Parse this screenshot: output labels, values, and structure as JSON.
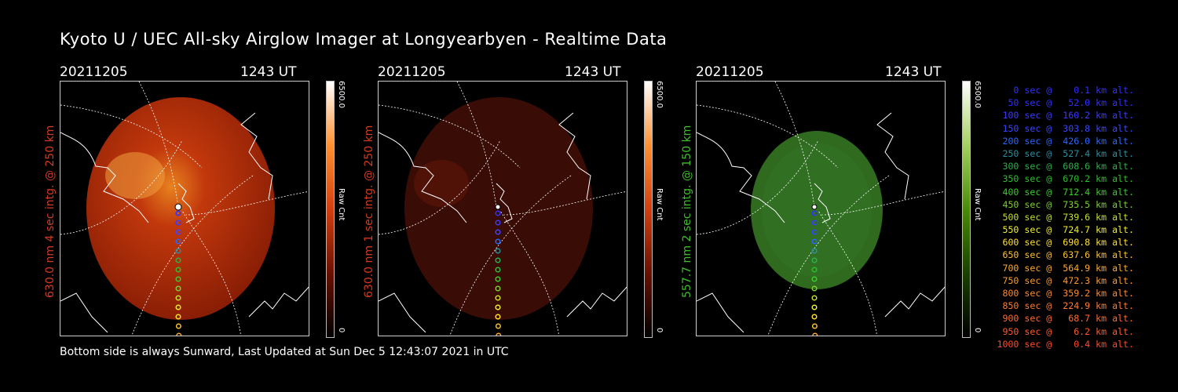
{
  "title": "Kyoto U / UEC All-sky Airglow Imager at Longyearbyen - Realtime Data",
  "footer": "Bottom side is always Sunward, Last Updated at Sun Dec  5 12:43:07 2021 in UTC",
  "panels": [
    {
      "date": "20211205",
      "time": "1243 UT",
      "side_label": "630.0 nm 4 sec intg. @ 250 km",
      "cb_max": "6500.0",
      "cb_min": "0",
      "cb_unit": "Raw Cnt",
      "color": "#d33a1b",
      "cb_color": "#ff6a1a"
    },
    {
      "date": "20211205",
      "time": "1243 UT",
      "side_label": "630.0 nm 1 sec intg. @ 250 km",
      "cb_max": "6500.0",
      "cb_min": "0",
      "cb_unit": "Raw Cnt",
      "color": "#d33a1b",
      "cb_color": "#ff6a1a"
    },
    {
      "date": "20211205",
      "time": "1243 UT",
      "side_label": "557.7 nm 2 sec intg. @ 150 km",
      "cb_max": "6500.0",
      "cb_min": "0",
      "cb_unit": "Raw Cnt",
      "color": "#3fbf2a",
      "cb_color": "#6fbf1a"
    }
  ],
  "chart_data": {
    "type": "scatter",
    "title": "Kyoto U / UEC All-sky Airglow Imager at Longyearbyen - Realtime Data",
    "series_legend": [
      {
        "sec": "0",
        "alt": "0.1",
        "text": "   0 sec @    0.1 km alt.",
        "color": "#3030ff"
      },
      {
        "sec": "50",
        "alt": "52.0",
        "text": "  50 sec @   52.0 km alt.",
        "color": "#3030ff"
      },
      {
        "sec": "100",
        "alt": "160.2",
        "text": " 100 sec @  160.2 km alt.",
        "color": "#3a3aff"
      },
      {
        "sec": "150",
        "alt": "303.8",
        "text": " 150 sec @  303.8 km alt.",
        "color": "#3a44ff"
      },
      {
        "sec": "200",
        "alt": "426.0",
        "text": " 200 sec @  426.0 km alt.",
        "color": "#2a66ff"
      },
      {
        "sec": "250",
        "alt": "527.4",
        "text": " 250 sec @  527.4 km alt.",
        "color": "#2a8f9f"
      },
      {
        "sec": "300",
        "alt": "608.6",
        "text": " 300 sec @  608.6 km alt.",
        "color": "#2ab04a"
      },
      {
        "sec": "350",
        "alt": "670.2",
        "text": " 350 sec @  670.2 km alt.",
        "color": "#2ac02a"
      },
      {
        "sec": "400",
        "alt": "712.4",
        "text": " 400 sec @  712.4 km alt.",
        "color": "#3acc2a"
      },
      {
        "sec": "450",
        "alt": "735.5",
        "text": " 450 sec @  735.5 km alt.",
        "color": "#7ad02a"
      },
      {
        "sec": "500",
        "alt": "739.6",
        "text": " 500 sec @  739.6 km alt.",
        "color": "#c4e02a"
      },
      {
        "sec": "550",
        "alt": "724.7",
        "text": " 550 sec @  724.7 km alt.",
        "color": "#f0f02a"
      },
      {
        "sec": "600",
        "alt": "690.8",
        "text": " 600 sec @  690.8 km alt.",
        "color": "#ffe02a"
      },
      {
        "sec": "650",
        "alt": "637.6",
        "text": " 650 sec @  637.6 km alt.",
        "color": "#ffc02a"
      },
      {
        "sec": "700",
        "alt": "564.9",
        "text": " 700 sec @  564.9 km alt.",
        "color": "#ffaa2a"
      },
      {
        "sec": "750",
        "alt": "472.3",
        "text": " 750 sec @  472.3 km alt.",
        "color": "#ff9a2a"
      },
      {
        "sec": "800",
        "alt": "359.2",
        "text": " 800 sec @  359.2 km alt.",
        "color": "#ff8a2a"
      },
      {
        "sec": "850",
        "alt": "224.9",
        "text": " 850 sec @  224.9 km alt.",
        "color": "#ff7a2a"
      },
      {
        "sec": "900",
        "alt": "68.7",
        "text": " 900 sec @   68.7 km alt.",
        "color": "#ff6a2a"
      },
      {
        "sec": "950",
        "alt": "6.2",
        "text": " 950 sec @    6.2 km alt.",
        "color": "#ff5a2a"
      },
      {
        "sec": "1000",
        "alt": "0.4",
        "text": "1000 sec @    0.4 km alt.",
        "color": "#ff4a2a"
      }
    ]
  }
}
